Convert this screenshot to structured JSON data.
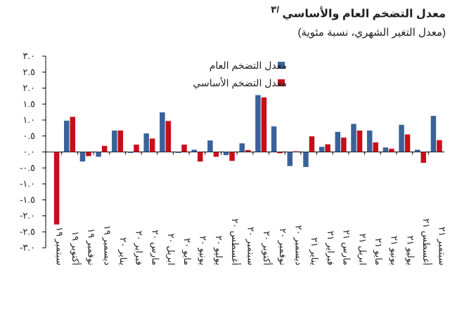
{
  "chart_data": {
    "type": "bar",
    "title": "معدل التضخم العام والأساسي ",
    "title_superscript": "/٣",
    "subtitle": "(معدل التغير الشهري، نسبة مئوية)",
    "ylim": [
      -3.0,
      3.0
    ],
    "yticks": [
      -3.0,
      -2.5,
      -2.0,
      -1.5,
      -1.0,
      -0.5,
      0.0,
      0.5,
      1.0,
      1.5,
      2.0,
      2.5,
      3.0
    ],
    "ytick_labels": [
      "-٣.٠",
      "-٢.٥",
      "-٢.٠",
      "-١.٥",
      "-١.٠",
      "-٠.٥",
      "٠.٠",
      "٠.٥",
      "١.٠",
      "١.٥",
      "٢.٠",
      "٢.٥",
      "٣.٠"
    ],
    "categories": [
      "سبتمبر ١٩",
      "أكتوبر ١٩",
      "نوفمبر ١٩",
      "ديسمبر ١٩",
      "يناير ٢٠",
      "فبراير ٢٠",
      "مارس ٢٠",
      "ابريل ٢٠",
      "مايو ٢٠",
      "يونيو ٢٠",
      "يوليو ٢٠",
      "أغسطس ٢٠",
      "سبتمبر ٢٠",
      "أكتوبر ٢٠",
      "نوفمبر ٢٠",
      "ديسمبر ٢٠",
      "يناير ٢١",
      "فبراير ٢١",
      "مارس ٢١",
      "ابريل ٢١",
      "مايو ٢١",
      "يونيو ٢١",
      "يوليو ٢١",
      "أغسطس ٢١",
      "سبتمبر ٢١"
    ],
    "series": [
      {
        "name": "معدل التضخم العام",
        "color": "#3a6299",
        "values": [
          0.0,
          0.98,
          -0.3,
          -0.15,
          0.67,
          -0.03,
          0.58,
          1.24,
          -0.03,
          0.07,
          0.36,
          -0.1,
          0.27,
          1.78,
          0.8,
          -0.44,
          -0.47,
          0.16,
          0.63,
          0.88,
          0.67,
          0.14,
          0.85,
          0.07,
          1.13
        ]
      },
      {
        "name": "معدل التضخم الأساسي",
        "color": "#c80e1b",
        "values": [
          -2.27,
          1.1,
          -0.13,
          0.19,
          0.67,
          0.23,
          0.42,
          0.97,
          0.23,
          -0.3,
          -0.15,
          -0.28,
          0.06,
          1.71,
          -0.04,
          0.02,
          0.49,
          0.24,
          0.45,
          0.67,
          0.3,
          0.1,
          0.55,
          -0.34,
          0.37
        ]
      }
    ],
    "legend_position": "top-right",
    "grid": false
  }
}
